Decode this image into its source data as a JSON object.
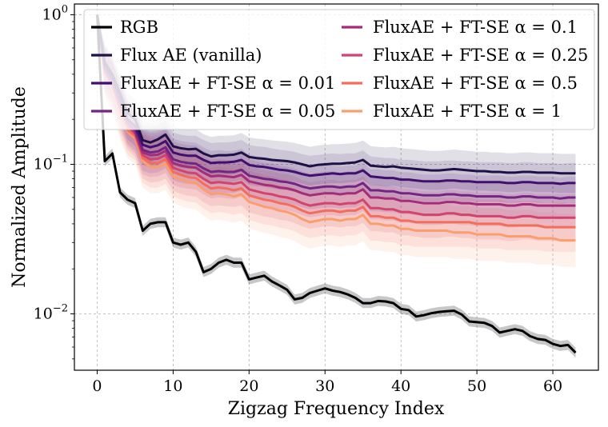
{
  "chart_data": {
    "type": "line",
    "title": "",
    "xlabel": "Zigzag Frequency Index",
    "ylabel": "Normalized Amplitude",
    "xlim": [
      -3,
      66
    ],
    "ylim": [
      0.0042,
      1.18
    ],
    "yscale": "log",
    "xticks": [
      0,
      10,
      20,
      30,
      40,
      50,
      60
    ],
    "yticks": [
      {
        "value": 1,
        "label": "10^0"
      },
      {
        "value": 0.1,
        "label": "10^-1"
      },
      {
        "value": 0.01,
        "label": "10^-2"
      }
    ],
    "grid": true,
    "legend_position": "top",
    "x": [
      0,
      1,
      2,
      3,
      4,
      5,
      6,
      7,
      8,
      9,
      10,
      11,
      12,
      13,
      14,
      15,
      16,
      17,
      18,
      19,
      20,
      21,
      22,
      23,
      24,
      25,
      26,
      27,
      28,
      29,
      30,
      31,
      32,
      33,
      34,
      35,
      36,
      37,
      38,
      39,
      40,
      41,
      42,
      43,
      44,
      45,
      46,
      47,
      48,
      49,
      50,
      51,
      52,
      53,
      54,
      55,
      56,
      57,
      58,
      59,
      60,
      61,
      62,
      63
    ],
    "series": [
      {
        "name": "RGB",
        "color": "#000004",
        "band": 0.08,
        "values": [
          1.0,
          0.105,
          0.118,
          0.065,
          0.058,
          0.055,
          0.036,
          0.04,
          0.041,
          0.041,
          0.03,
          0.029,
          0.03,
          0.026,
          0.019,
          0.02,
          0.022,
          0.023,
          0.022,
          0.022,
          0.017,
          0.0175,
          0.018,
          0.0165,
          0.0155,
          0.0145,
          0.0125,
          0.0128,
          0.0138,
          0.0143,
          0.0148,
          0.0143,
          0.014,
          0.0135,
          0.0128,
          0.0118,
          0.0118,
          0.0122,
          0.0121,
          0.0118,
          0.0108,
          0.0106,
          0.0096,
          0.0098,
          0.0101,
          0.0103,
          0.0104,
          0.0105,
          0.0099,
          0.0089,
          0.0088,
          0.0087,
          0.0083,
          0.0075,
          0.0077,
          0.0079,
          0.0077,
          0.0071,
          0.0068,
          0.0067,
          0.0063,
          0.0061,
          0.0062,
          0.0055
        ]
      },
      {
        "name": "Flux AE (vanilla)",
        "color": "#1e1147",
        "band": 0.35,
        "values": [
          1.0,
          0.48,
          0.4,
          0.3,
          0.22,
          0.2,
          0.145,
          0.14,
          0.147,
          0.158,
          0.132,
          0.128,
          0.126,
          0.127,
          0.118,
          0.113,
          0.115,
          0.115,
          0.116,
          0.12,
          0.112,
          0.11,
          0.109,
          0.107,
          0.106,
          0.105,
          0.103,
          0.1,
          0.097,
          0.099,
          0.1,
          0.101,
          0.101,
          0.102,
          0.103,
          0.107,
          0.098,
          0.097,
          0.096,
          0.097,
          0.095,
          0.094,
          0.093,
          0.092,
          0.091,
          0.091,
          0.092,
          0.093,
          0.092,
          0.091,
          0.09,
          0.09,
          0.089,
          0.089,
          0.088,
          0.088,
          0.089,
          0.089,
          0.088,
          0.088,
          0.088,
          0.087,
          0.087,
          0.087
        ]
      },
      {
        "name": "FluxAE + FT-SE α = 0.01",
        "color": "#400f70",
        "band": 0.36,
        "values": [
          1.0,
          0.46,
          0.38,
          0.28,
          0.2,
          0.18,
          0.135,
          0.13,
          0.134,
          0.143,
          0.12,
          0.116,
          0.114,
          0.114,
          0.107,
          0.102,
          0.103,
          0.103,
          0.104,
          0.107,
          0.099,
          0.097,
          0.096,
          0.094,
          0.092,
          0.091,
          0.089,
          0.086,
          0.084,
          0.085,
          0.086,
          0.087,
          0.086,
          0.087,
          0.087,
          0.091,
          0.083,
          0.082,
          0.081,
          0.081,
          0.079,
          0.079,
          0.078,
          0.077,
          0.077,
          0.077,
          0.078,
          0.078,
          0.077,
          0.077,
          0.076,
          0.076,
          0.076,
          0.076,
          0.075,
          0.075,
          0.076,
          0.076,
          0.075,
          0.075,
          0.075,
          0.074,
          0.075,
          0.075
        ]
      },
      {
        "name": "FluxAE + FT-SE α = 0.05",
        "color": "#742483",
        "band": 0.38,
        "values": [
          1.0,
          0.44,
          0.36,
          0.26,
          0.19,
          0.17,
          0.125,
          0.12,
          0.122,
          0.13,
          0.108,
          0.104,
          0.102,
          0.101,
          0.094,
          0.089,
          0.09,
          0.089,
          0.089,
          0.092,
          0.084,
          0.082,
          0.08,
          0.079,
          0.077,
          0.076,
          0.074,
          0.071,
          0.069,
          0.07,
          0.071,
          0.071,
          0.07,
          0.071,
          0.071,
          0.075,
          0.067,
          0.067,
          0.066,
          0.066,
          0.064,
          0.064,
          0.063,
          0.062,
          0.062,
          0.062,
          0.063,
          0.063,
          0.062,
          0.062,
          0.061,
          0.061,
          0.061,
          0.061,
          0.06,
          0.06,
          0.061,
          0.061,
          0.06,
          0.06,
          0.06,
          0.059,
          0.06,
          0.06
        ]
      },
      {
        "name": "FluxAE + FT-SE α = 0.1",
        "color": "#a52c7b",
        "band": 0.4,
        "values": [
          1.0,
          0.43,
          0.35,
          0.25,
          0.185,
          0.165,
          0.12,
          0.115,
          0.116,
          0.123,
          0.102,
          0.098,
          0.096,
          0.095,
          0.088,
          0.083,
          0.084,
          0.083,
          0.082,
          0.085,
          0.077,
          0.075,
          0.073,
          0.072,
          0.07,
          0.069,
          0.067,
          0.064,
          0.062,
          0.063,
          0.064,
          0.064,
          0.063,
          0.064,
          0.064,
          0.068,
          0.06,
          0.06,
          0.059,
          0.059,
          0.057,
          0.057,
          0.056,
          0.055,
          0.055,
          0.055,
          0.056,
          0.056,
          0.055,
          0.055,
          0.054,
          0.054,
          0.054,
          0.054,
          0.053,
          0.053,
          0.054,
          0.054,
          0.053,
          0.053,
          0.053,
          0.053,
          0.053,
          0.053
        ]
      },
      {
        "name": "FluxAE + FT-SE α = 0.25",
        "color": "#d3436e",
        "band": 0.43,
        "values": [
          1.0,
          0.42,
          0.34,
          0.24,
          0.18,
          0.16,
          0.115,
          0.108,
          0.109,
          0.115,
          0.095,
          0.091,
          0.088,
          0.087,
          0.08,
          0.075,
          0.076,
          0.075,
          0.074,
          0.076,
          0.068,
          0.066,
          0.064,
          0.063,
          0.061,
          0.06,
          0.058,
          0.055,
          0.053,
          0.054,
          0.055,
          0.055,
          0.054,
          0.055,
          0.055,
          0.058,
          0.051,
          0.051,
          0.05,
          0.05,
          0.048,
          0.048,
          0.047,
          0.046,
          0.046,
          0.046,
          0.047,
          0.047,
          0.046,
          0.046,
          0.045,
          0.045,
          0.045,
          0.045,
          0.044,
          0.044,
          0.045,
          0.045,
          0.044,
          0.044,
          0.044,
          0.044,
          0.044,
          0.044
        ]
      },
      {
        "name": "FluxAE + FT-SE α = 0.5",
        "color": "#f36d5a",
        "band": 0.46,
        "values": [
          1.0,
          0.41,
          0.33,
          0.23,
          0.17,
          0.155,
          0.11,
          0.102,
          0.102,
          0.108,
          0.089,
          0.085,
          0.082,
          0.081,
          0.074,
          0.069,
          0.07,
          0.069,
          0.067,
          0.069,
          0.062,
          0.06,
          0.058,
          0.057,
          0.055,
          0.054,
          0.052,
          0.049,
          0.047,
          0.048,
          0.049,
          0.049,
          0.048,
          0.049,
          0.049,
          0.052,
          0.045,
          0.045,
          0.044,
          0.044,
          0.042,
          0.042,
          0.041,
          0.041,
          0.041,
          0.041,
          0.041,
          0.041,
          0.041,
          0.041,
          0.04,
          0.04,
          0.04,
          0.04,
          0.039,
          0.039,
          0.039,
          0.039,
          0.039,
          0.038,
          0.038,
          0.038,
          0.038,
          0.038
        ]
      },
      {
        "name": "FluxAE + FT-SE α = 1",
        "color": "#fb9e6b",
        "band": 0.5,
        "values": [
          1.0,
          0.4,
          0.32,
          0.22,
          0.165,
          0.15,
          0.105,
          0.096,
          0.096,
          0.101,
          0.083,
          0.079,
          0.076,
          0.075,
          0.068,
          0.063,
          0.064,
          0.063,
          0.061,
          0.063,
          0.056,
          0.054,
          0.052,
          0.051,
          0.049,
          0.048,
          0.046,
          0.043,
          0.041,
          0.042,
          0.043,
          0.043,
          0.042,
          0.043,
          0.043,
          0.046,
          0.04,
          0.04,
          0.039,
          0.039,
          0.037,
          0.037,
          0.036,
          0.036,
          0.036,
          0.036,
          0.036,
          0.035,
          0.035,
          0.035,
          0.034,
          0.034,
          0.034,
          0.034,
          0.033,
          0.033,
          0.033,
          0.033,
          0.032,
          0.032,
          0.032,
          0.031,
          0.031,
          0.031
        ]
      }
    ]
  }
}
